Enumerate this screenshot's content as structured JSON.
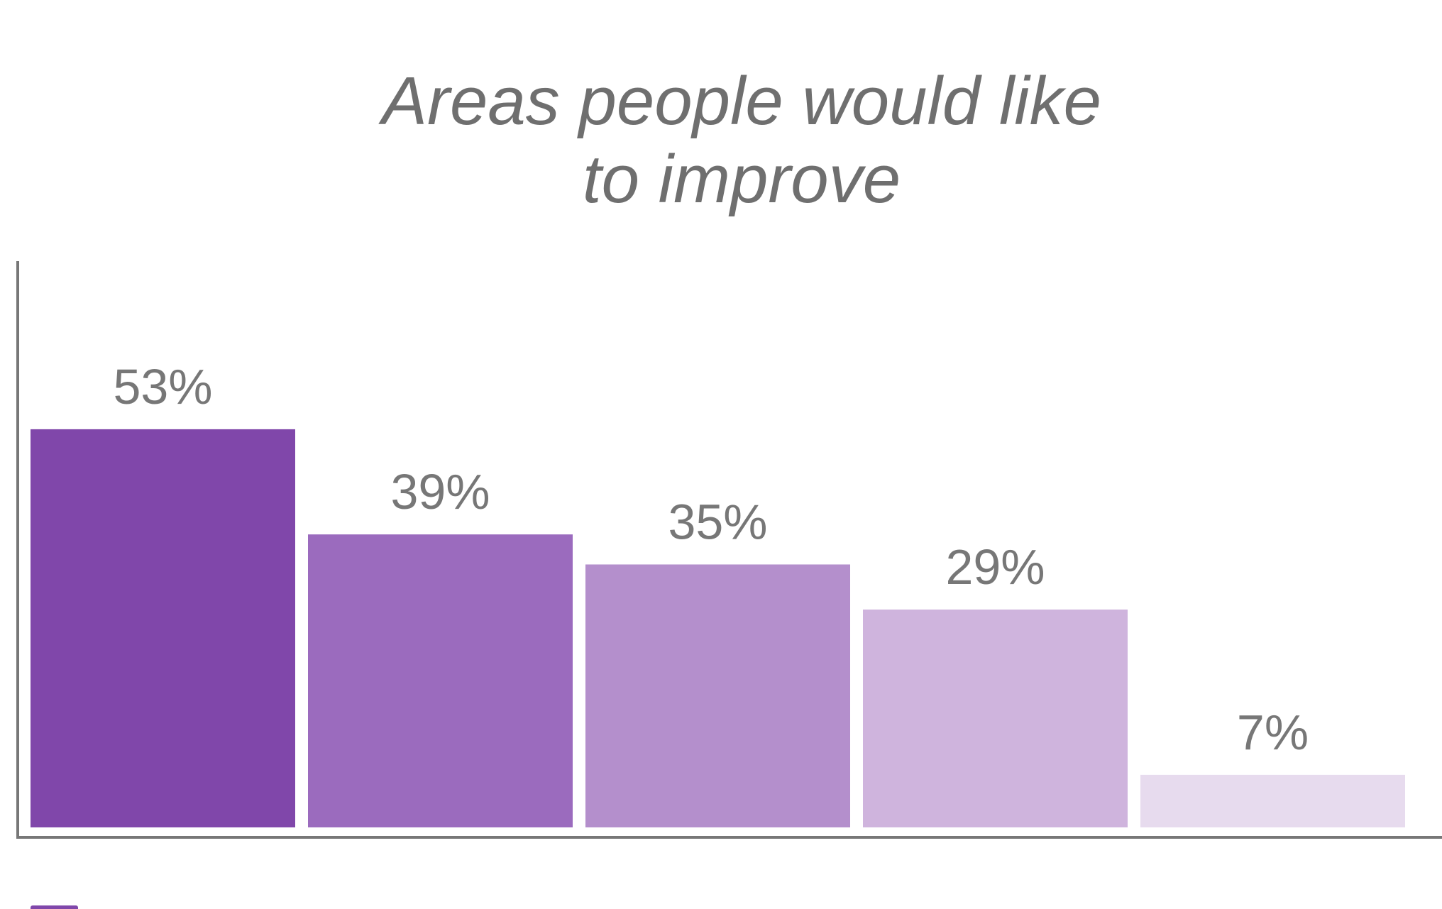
{
  "chart_data": {
    "type": "bar",
    "title": "Areas people would like to improve",
    "categories": [
      null,
      null,
      null,
      null,
      null
    ],
    "values": [
      53,
      39,
      35,
      29,
      7
    ],
    "value_labels": [
      "53%",
      "39%",
      "35%",
      "29%",
      "7%"
    ],
    "colors": [
      "#8047aa",
      "#9b6bbe",
      "#b48fcc",
      "#cfb4dd",
      "#e7dbee"
    ],
    "ylim": [
      0,
      75
    ]
  }
}
